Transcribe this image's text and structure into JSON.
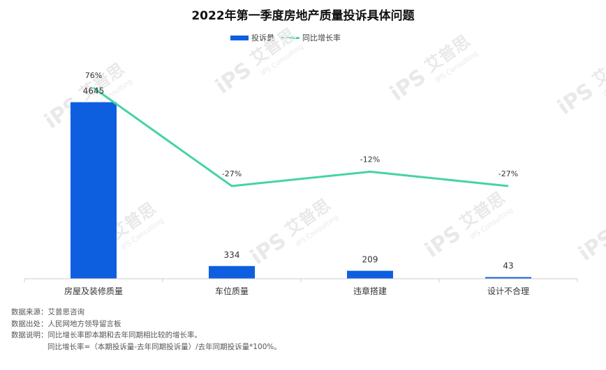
{
  "colors": {
    "bar": "#0e5fe0",
    "line": "#45d4a3",
    "axis": "#cccccc",
    "watermark": "#e9e9e9"
  },
  "chart_data": {
    "type": "bar",
    "title": "2022年第一季度房地产质量投诉具体问题",
    "categories": [
      "房屋及装修质量",
      "车位质量",
      "违章搭建",
      "设计不合理"
    ],
    "series": [
      {
        "name": "投诉量",
        "type": "bar",
        "values": [
          4645,
          334,
          209,
          43
        ],
        "labels": [
          "4645",
          "334",
          "209",
          "43"
        ]
      },
      {
        "name": "同比增长率",
        "type": "line",
        "values": [
          76,
          -27,
          -12,
          -27
        ],
        "labels": [
          "76%",
          "-27%",
          "-12%",
          "-27%"
        ]
      }
    ],
    "bar_ylim": [
      0,
      6600
    ],
    "line_ylim": [
      -95,
      95
    ],
    "legend": "top-center",
    "grid": false
  },
  "notes": [
    "数据来源：艾普思咨询",
    "数据出处：人民网地方领导留言板",
    "数据说明：同比增长率即本期和去年同期相比较的增长率。",
    "同比增长率=（本期投诉量-去年同期投诉量）/去年同期投诉量*100%。"
  ],
  "watermark": {
    "brand": "艾普思",
    "sub": "IPS Consulting",
    "logo": "iPS"
  }
}
